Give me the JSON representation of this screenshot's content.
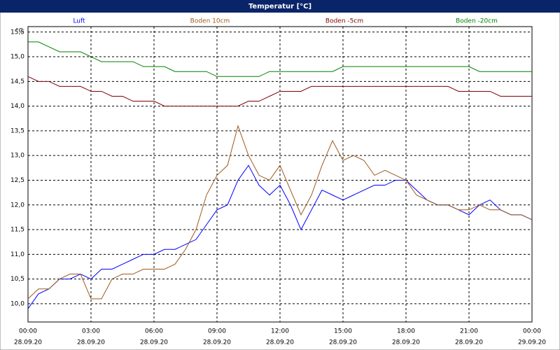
{
  "chart_data": {
    "type": "line",
    "title": "Temperatur [°C]",
    "y_unit": "°C",
    "x": [
      0,
      0.5,
      1,
      1.5,
      2,
      2.5,
      3,
      3.5,
      4,
      4.5,
      5,
      5.5,
      6,
      6.5,
      7,
      7.5,
      8,
      8.5,
      9,
      9.5,
      10,
      10.5,
      11,
      11.5,
      12,
      12.5,
      13,
      13.5,
      14,
      14.5,
      15,
      15.5,
      16,
      16.5,
      17,
      17.5,
      18,
      18.5,
      19,
      19.5,
      20,
      20.5,
      21,
      21.5,
      22,
      22.5,
      23,
      23.5,
      24
    ],
    "series": [
      {
        "name": "Luft",
        "color": "#0000ff",
        "values": [
          9.9,
          10.2,
          10.3,
          10.5,
          10.5,
          10.6,
          10.5,
          10.7,
          10.7,
          10.8,
          10.9,
          11.0,
          11.0,
          11.1,
          11.1,
          11.2,
          11.3,
          11.6,
          11.9,
          12.0,
          12.5,
          12.8,
          12.4,
          12.2,
          12.4,
          12.0,
          11.5,
          11.9,
          12.3,
          12.2,
          12.1,
          12.2,
          12.3,
          12.4,
          12.4,
          12.5,
          12.5,
          12.3,
          12.1,
          12.0,
          12.0,
          11.9,
          11.8,
          12.0,
          12.1,
          11.9,
          11.8,
          11.8,
          11.7
        ]
      },
      {
        "name": "Boden 10cm",
        "color": "#9c5a1e",
        "values": [
          10.1,
          10.3,
          10.3,
          10.5,
          10.6,
          10.6,
          10.1,
          10.1,
          10.5,
          10.6,
          10.6,
          10.7,
          10.7,
          10.7,
          10.8,
          11.1,
          11.5,
          12.2,
          12.6,
          12.8,
          13.6,
          13.0,
          12.6,
          12.5,
          12.8,
          12.3,
          11.8,
          12.2,
          12.8,
          13.3,
          12.9,
          13.0,
          12.9,
          12.6,
          12.7,
          12.6,
          12.5,
          12.2,
          12.1,
          12.0,
          12.0,
          11.9,
          11.9,
          12.0,
          11.9,
          11.9,
          11.8,
          11.8,
          11.7
        ]
      },
      {
        "name": "Boden -5cm",
        "color": "#800000",
        "values": [
          14.6,
          14.5,
          14.5,
          14.4,
          14.4,
          14.4,
          14.3,
          14.3,
          14.2,
          14.2,
          14.1,
          14.1,
          14.1,
          14.0,
          14.0,
          14.0,
          14.0,
          14.0,
          14.0,
          14.0,
          14.0,
          14.1,
          14.1,
          14.2,
          14.3,
          14.3,
          14.3,
          14.4,
          14.4,
          14.4,
          14.4,
          14.4,
          14.4,
          14.4,
          14.4,
          14.4,
          14.4,
          14.4,
          14.4,
          14.4,
          14.4,
          14.3,
          14.3,
          14.3,
          14.3,
          14.2,
          14.2,
          14.2,
          14.2
        ]
      },
      {
        "name": "Boden -20cm",
        "color": "#008000",
        "values": [
          15.3,
          15.3,
          15.2,
          15.1,
          15.1,
          15.1,
          15.0,
          14.9,
          14.9,
          14.9,
          14.9,
          14.8,
          14.8,
          14.8,
          14.7,
          14.7,
          14.7,
          14.7,
          14.6,
          14.6,
          14.6,
          14.6,
          14.6,
          14.7,
          14.7,
          14.7,
          14.7,
          14.7,
          14.7,
          14.7,
          14.8,
          14.8,
          14.8,
          14.8,
          14.8,
          14.8,
          14.8,
          14.8,
          14.8,
          14.8,
          14.8,
          14.8,
          14.8,
          14.7,
          14.7,
          14.7,
          14.7,
          14.7,
          14.7
        ]
      }
    ],
    "xlim": [
      0,
      24
    ],
    "xticks": [
      {
        "value": 0,
        "label": "00:00"
      },
      {
        "value": 3,
        "label": "03:00"
      },
      {
        "value": 6,
        "label": "06:00"
      },
      {
        "value": 9,
        "label": "09:00"
      },
      {
        "value": 12,
        "label": "12:00"
      },
      {
        "value": 15,
        "label": "15:00"
      },
      {
        "value": 18,
        "label": "18:00"
      },
      {
        "value": 21,
        "label": "21:00"
      },
      {
        "value": 24,
        "label": "00:00"
      }
    ],
    "xtick_dates": [
      "28.09.20",
      "28.09.20",
      "28.09.20",
      "28.09.20",
      "28.09.20",
      "28.09.20",
      "28.09.20",
      "28.09.20",
      "29.09.20"
    ],
    "ylim": [
      9.63,
      15.61
    ],
    "yticks": [
      {
        "value": 10,
        "label": "10,0"
      },
      {
        "value": 10.5,
        "label": "10,5"
      },
      {
        "value": 11,
        "label": "11,0"
      },
      {
        "value": 11.5,
        "label": "11,5"
      },
      {
        "value": 12,
        "label": "12,0"
      },
      {
        "value": 12.5,
        "label": "12,5"
      },
      {
        "value": 13,
        "label": "13,0"
      },
      {
        "value": 13.5,
        "label": "13,5"
      },
      {
        "value": 14,
        "label": "14,0"
      },
      {
        "value": 14.5,
        "label": "14,5"
      },
      {
        "value": 15,
        "label": "15,0"
      },
      {
        "value": 15.5,
        "label": "15,5"
      }
    ],
    "grid": true
  }
}
